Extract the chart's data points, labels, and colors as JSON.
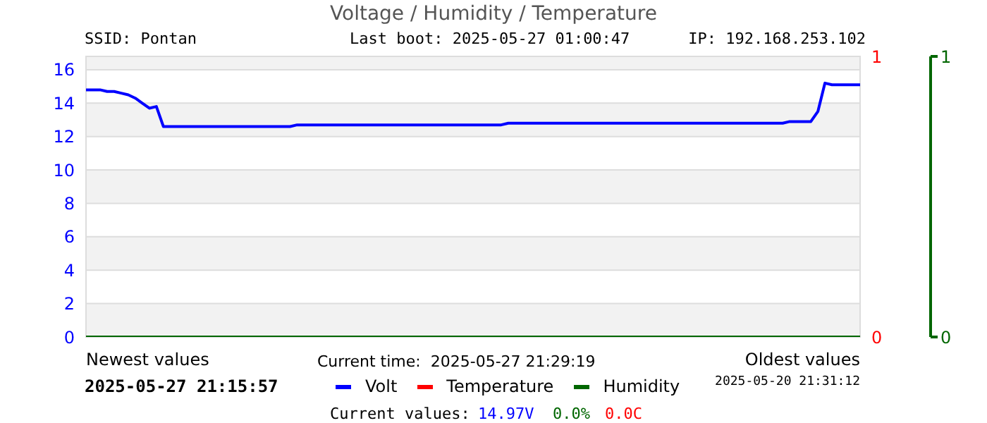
{
  "chart_data": {
    "type": "line",
    "title": "Voltage / Humidity / Temperature",
    "annotations": [
      "SSID: Pontan",
      "Last boot: 2025-05-27 01:00:47",
      "IP: 192.168.253.102",
      "Newest values",
      "Current time:  2025-05-27 21:29:19",
      "Oldest values",
      "2025-05-27 21:15:57",
      "2025-05-20 21:31:12",
      "Current values:",
      "14.97V",
      "0.0%",
      "0.0C"
    ],
    "categories": [
      null,
      null,
      null,
      null,
      null,
      null,
      null,
      null,
      null,
      null,
      null,
      null,
      null,
      null,
      null,
      null,
      null,
      null,
      null,
      null,
      null,
      null,
      null,
      null,
      null,
      null,
      null,
      null,
      null,
      null,
      null,
      null,
      null,
      null,
      null,
      null,
      null,
      null,
      null,
      null,
      null,
      null,
      null,
      null,
      null,
      null,
      null,
      null,
      null,
      null,
      null,
      null,
      null,
      null,
      null,
      null,
      null,
      null,
      null,
      null,
      null,
      null,
      null,
      null,
      null,
      null,
      null,
      null,
      null,
      null,
      null,
      null,
      null,
      null,
      null,
      null,
      null,
      null,
      null,
      null,
      null,
      null,
      null,
      null,
      null,
      null,
      null,
      null,
      null,
      null,
      null,
      null,
      null,
      null,
      null,
      null,
      null,
      null,
      null,
      null,
      null,
      null,
      null,
      null,
      null,
      null,
      null,
      null,
      null,
      null,
      null
    ],
    "series": [
      {
        "name": "Volt",
        "color": "#0000ff",
        "values": [
          14.8,
          14.8,
          14.8,
          14.7,
          14.7,
          14.6,
          14.5,
          14.3,
          14.0,
          13.7,
          13.8,
          12.6,
          12.6,
          12.6,
          12.6,
          12.6,
          12.6,
          12.6,
          12.6,
          12.6,
          12.6,
          12.6,
          12.6,
          12.6,
          12.6,
          12.6,
          12.6,
          12.6,
          12.6,
          12.6,
          12.7,
          12.7,
          12.7,
          12.7,
          12.7,
          12.7,
          12.7,
          12.7,
          12.7,
          12.7,
          12.7,
          12.7,
          12.7,
          12.7,
          12.7,
          12.7,
          12.7,
          12.7,
          12.7,
          12.7,
          12.7,
          12.7,
          12.7,
          12.7,
          12.7,
          12.7,
          12.7,
          12.7,
          12.7,
          12.7,
          12.8,
          12.8,
          12.8,
          12.8,
          12.8,
          12.8,
          12.8,
          12.8,
          12.8,
          12.8,
          12.8,
          12.8,
          12.8,
          12.8,
          12.8,
          12.8,
          12.8,
          12.8,
          12.8,
          12.8,
          12.8,
          12.8,
          12.8,
          12.8,
          12.8,
          12.8,
          12.8,
          12.8,
          12.8,
          12.8,
          12.8,
          12.8,
          12.8,
          12.8,
          12.8,
          12.8,
          12.8,
          12.8,
          12.8,
          12.8,
          12.9,
          12.9,
          12.9,
          12.9,
          13.5,
          15.2,
          15.1,
          15.1,
          15.1,
          15.1,
          15.1
        ]
      },
      {
        "name": "Temperature",
        "color": "#ff0000",
        "axis": "y2",
        "values": [
          null,
          null,
          null,
          null,
          null,
          null,
          null,
          null,
          null,
          null,
          null,
          null,
          null,
          null,
          null,
          null,
          null,
          null,
          null,
          null,
          null,
          null,
          null,
          null,
          null,
          null,
          null,
          null,
          null,
          null,
          null,
          null,
          null,
          null,
          null,
          null,
          null,
          null,
          null,
          null,
          null,
          null,
          null,
          null,
          null,
          null,
          null,
          null,
          null,
          null,
          null,
          null,
          null,
          null,
          null,
          null,
          null,
          null,
          null,
          null,
          null,
          null,
          null,
          null,
          null,
          null,
          null,
          null,
          null,
          null,
          null,
          null,
          null,
          null,
          null,
          null,
          null,
          null,
          null,
          null,
          null,
          null,
          null,
          null,
          null,
          null,
          null,
          null,
          null,
          null,
          null,
          null,
          null,
          null,
          null,
          null,
          null,
          null,
          null,
          null,
          null,
          null,
          null,
          null,
          null,
          null,
          null,
          null,
          null,
          null,
          null
        ]
      },
      {
        "name": "Humidity",
        "color": "#006600",
        "axis": "y3",
        "values": [
          0,
          0,
          0,
          0,
          0,
          0,
          0,
          0,
          0,
          0,
          0,
          0,
          0,
          0,
          0,
          0,
          0,
          0,
          0,
          0,
          0,
          0,
          0,
          0,
          0,
          0,
          0,
          0,
          0,
          0,
          0,
          0,
          0,
          0,
          0,
          0,
          0,
          0,
          0,
          0,
          0,
          0,
          0,
          0,
          0,
          0,
          0,
          0,
          0,
          0,
          0,
          0,
          0,
          0,
          0,
          0,
          0,
          0,
          0,
          0,
          0,
          0,
          0,
          0,
          0,
          0,
          0,
          0,
          0,
          0,
          0,
          0,
          0,
          0,
          0,
          0,
          0,
          0,
          0,
          0,
          0,
          0,
          0,
          0,
          0,
          0,
          0,
          0,
          0,
          0,
          0,
          0,
          0,
          0,
          0,
          0,
          0,
          0,
          0,
          0,
          0,
          0,
          0,
          0,
          0,
          0,
          0,
          0,
          0,
          0,
          0
        ]
      }
    ],
    "ylim": [
      0,
      16.8
    ],
    "yticks": [
      0,
      2,
      4,
      6,
      8,
      10,
      12,
      14,
      16
    ],
    "y2lim": [
      0,
      1
    ],
    "y2ticks": [
      0,
      1
    ],
    "y3lim": [
      0,
      1
    ],
    "y3ticks": [
      0,
      1
    ],
    "grid": "y",
    "legend": "bottom",
    "marker": "none",
    "line_style": "solid"
  }
}
